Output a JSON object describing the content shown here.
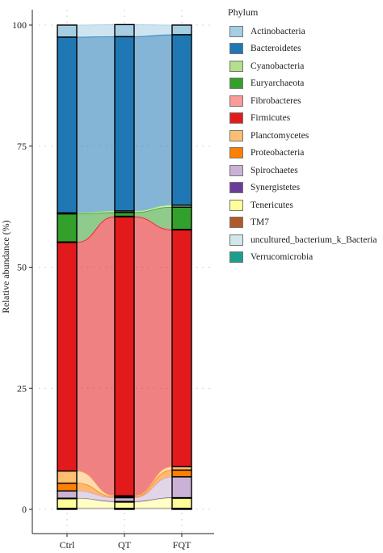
{
  "chart_data": {
    "type": "stacked_bar_alluvial",
    "ylabel": "Relative abundance (%)",
    "ylim": [
      0,
      100
    ],
    "yticks": [
      0,
      25,
      50,
      75,
      100
    ],
    "categories": [
      "Ctrl",
      "QT",
      "FQT"
    ],
    "legend": {
      "title": "Phylum",
      "placement": "right"
    },
    "series": [
      {
        "name": "Actinobacteria",
        "color": "#a6cee3",
        "values": [
          2.5,
          2.5,
          2.0
        ]
      },
      {
        "name": "Bacteroidetes",
        "color": "#1f78b4",
        "values": [
          36.3,
          36.0,
          35.2
        ]
      },
      {
        "name": "Cyanobacteria",
        "color": "#b2df8a",
        "values": [
          0.2,
          0.3,
          0.4
        ]
      },
      {
        "name": "Euryarchaeota",
        "color": "#33a02c",
        "values": [
          5.8,
          0.8,
          4.6
        ]
      },
      {
        "name": "Fibrobacteres",
        "color": "#fb9a99",
        "values": [
          0.1,
          0.1,
          0.1
        ]
      },
      {
        "name": "Firmicutes",
        "color": "#e31a1c",
        "values": [
          47.2,
          57.6,
          48.9
        ]
      },
      {
        "name": "Planctomycetes",
        "color": "#fdbf6f",
        "values": [
          2.5,
          0.2,
          0.7
        ]
      },
      {
        "name": "Proteobacteria",
        "color": "#ff7f00",
        "values": [
          1.6,
          0.2,
          1.4
        ]
      },
      {
        "name": "Spirochaetes",
        "color": "#cab2d6",
        "values": [
          1.5,
          0.8,
          4.3
        ]
      },
      {
        "name": "Synergistetes",
        "color": "#6a3d9a",
        "values": [
          0.1,
          0.1,
          0.1
        ]
      },
      {
        "name": "Tenericutes",
        "color": "#ffff99",
        "values": [
          2.0,
          1.3,
          2.1
        ]
      },
      {
        "name": "TM7",
        "color": "#b15928",
        "values": [
          0.1,
          0.1,
          0.1
        ]
      },
      {
        "name": "uncultured_bacterium_k_Bacteria",
        "color": "#cfe8ea",
        "values": [
          0.1,
          0.1,
          0.1
        ]
      },
      {
        "name": "Verrucomicrobia",
        "color": "#1b9e8a",
        "values": [
          0.0,
          0.0,
          0.0
        ]
      }
    ]
  }
}
